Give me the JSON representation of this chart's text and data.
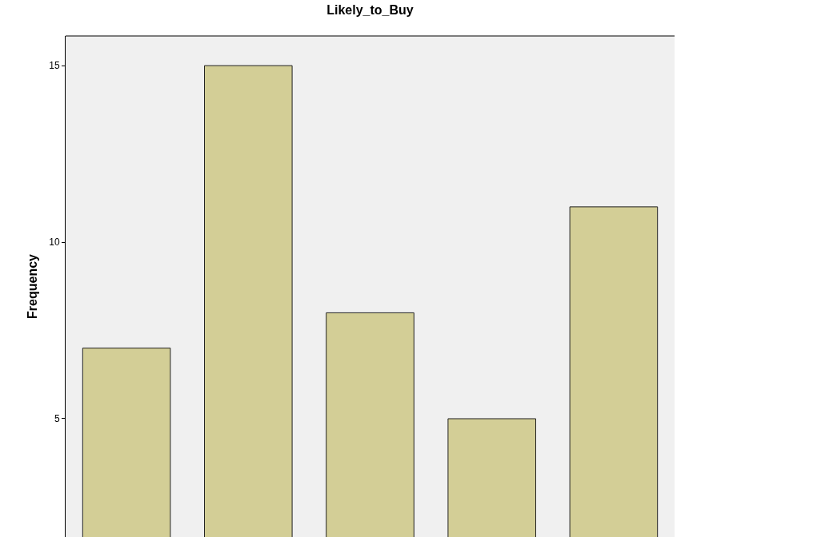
{
  "chart_data": {
    "type": "bar",
    "title": "Likely_to_Buy",
    "ylabel": "Frequency",
    "categories": [
      null,
      null,
      null,
      null,
      null
    ],
    "values": [
      7,
      15,
      8,
      5,
      11
    ],
    "color": "#d3ce96",
    "ylim": [
      1.65,
      15.84
    ],
    "yticks": [
      5,
      10,
      15
    ],
    "grid": false,
    "tick_labels": "y"
  }
}
